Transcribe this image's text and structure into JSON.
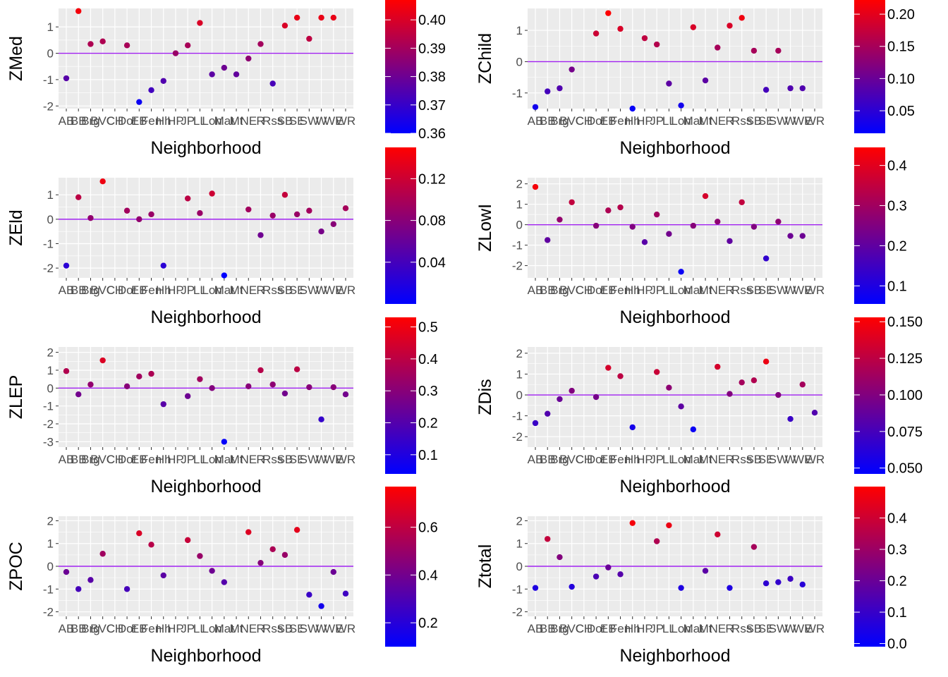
{
  "chart_data": [
    {
      "type": "scatter",
      "xlabel": "Neighborhood",
      "ylabel": "ZMed",
      "ylim": [
        -2.1,
        1.7
      ],
      "y_ticks": [
        -2,
        -1,
        0,
        1
      ],
      "tick_labels": [
        "AB",
        "BB",
        "Brg",
        "BVC",
        "CH",
        "Dot",
        "EB",
        "Fen",
        "Hh",
        "HP",
        "JP",
        "LL",
        "Lon",
        "Mat",
        "Mt",
        "NE",
        "R",
        "Rss",
        "SB",
        "SE",
        "SW",
        "W",
        "WE",
        "WR"
      ],
      "point_indices": [
        0,
        1,
        2,
        3,
        5,
        6,
        7,
        8,
        9,
        10,
        11,
        12,
        13,
        14,
        15,
        16,
        17,
        18,
        19,
        20,
        21,
        22
      ],
      "values": [
        -0.95,
        1.6,
        0.35,
        0.45,
        0.3,
        -1.85,
        -1.4,
        -1.05,
        0.0,
        0.3,
        1.15,
        -0.8,
        -0.55,
        -0.8,
        -0.2,
        0.35,
        -1.15,
        1.05,
        1.35,
        0.55,
        1.35,
        1.35
      ],
      "color_values": [
        0.376,
        0.405,
        0.392,
        0.392,
        0.391,
        0.362,
        0.372,
        0.375,
        0.388,
        0.391,
        0.4,
        0.377,
        0.38,
        0.378,
        0.386,
        0.39,
        0.373,
        0.4,
        0.403,
        0.395,
        0.403,
        0.403
      ],
      "colorbar": {
        "min": 0.36,
        "max": 0.407,
        "ticks": [
          0.36,
          0.37,
          0.38,
          0.39,
          0.4
        ],
        "labels": [
          "0.36",
          "0.37",
          "0.38",
          "0.39",
          "0.40"
        ]
      },
      "hline": 0
    },
    {
      "type": "scatter",
      "xlabel": "Neighborhood",
      "ylabel": "ZChild",
      "ylim": [
        -1.5,
        1.7
      ],
      "y_ticks": [
        -1,
        0,
        1
      ],
      "tick_labels": [
        "AB",
        "BB",
        "Brg",
        "BVC",
        "CH",
        "Dot",
        "EB",
        "Fen",
        "Hh",
        "HP",
        "JP",
        "LL",
        "Lon",
        "Mat",
        "Mt",
        "NE",
        "R",
        "Rss",
        "SB",
        "SE",
        "SW",
        "W",
        "WE",
        "WR"
      ],
      "point_indices": [
        0,
        1,
        2,
        3,
        5,
        6,
        7,
        8,
        9,
        10,
        11,
        12,
        13,
        14,
        15,
        16,
        17,
        18,
        19,
        20,
        21,
        22
      ],
      "values": [
        -1.45,
        -0.95,
        -0.85,
        -0.25,
        0.9,
        1.55,
        1.05,
        -1.5,
        0.75,
        0.55,
        -0.7,
        -1.4,
        1.1,
        -0.6,
        0.45,
        1.15,
        1.4,
        0.35,
        -0.9,
        0.35,
        -0.85,
        -0.85
      ],
      "color_values": [
        0.03,
        0.07,
        0.08,
        0.11,
        0.18,
        0.22,
        0.19,
        0.02,
        0.17,
        0.16,
        0.09,
        0.03,
        0.19,
        0.09,
        0.15,
        0.19,
        0.21,
        0.15,
        0.07,
        0.15,
        0.08,
        0.08
      ],
      "colorbar": {
        "min": 0.015,
        "max": 0.222,
        "ticks": [
          0.05,
          0.1,
          0.15,
          0.2
        ],
        "labels": [
          "0.05",
          "0.10",
          "0.15",
          "0.20"
        ]
      },
      "hline": 0
    },
    {
      "type": "scatter",
      "xlabel": "Neighborhood",
      "ylabel": "ZEld",
      "ylim": [
        -2.4,
        1.7
      ],
      "y_ticks": [
        -2,
        -1,
        0,
        1
      ],
      "tick_labels": [
        "AB",
        "BB",
        "Brg",
        "BVC",
        "CH",
        "Dot",
        "EB",
        "Fen",
        "Hh",
        "HP",
        "JP",
        "LL",
        "Lon",
        "Mat",
        "Mt",
        "NE",
        "R",
        "Rss",
        "SB",
        "SE",
        "SW",
        "W",
        "WE",
        "WR"
      ],
      "point_indices": [
        0,
        1,
        2,
        3,
        5,
        6,
        7,
        8,
        10,
        11,
        12,
        13,
        15,
        16,
        17,
        18,
        19,
        20,
        21,
        22,
        23
      ],
      "values": [
        -1.9,
        0.9,
        0.05,
        1.55,
        0.35,
        0.0,
        0.2,
        -1.9,
        0.85,
        0.25,
        1.05,
        -2.3,
        0.4,
        -0.65,
        0.15,
        1.0,
        0.2,
        0.35,
        -0.5,
        -0.2,
        0.45
      ],
      "color_values": [
        0.025,
        0.11,
        0.085,
        0.14,
        0.095,
        0.085,
        0.09,
        0.025,
        0.11,
        0.09,
        0.12,
        0.0,
        0.095,
        0.065,
        0.09,
        0.115,
        0.09,
        0.095,
        0.07,
        0.08,
        0.097
      ],
      "colorbar": {
        "min": 0.0,
        "max": 0.15,
        "ticks": [
          0.04,
          0.08,
          0.12
        ],
        "labels": [
          "0.04",
          "0.08",
          "0.12"
        ]
      },
      "hline": 0
    },
    {
      "type": "scatter",
      "xlabel": "Neighborhood",
      "ylabel": "ZLowI",
      "ylim": [
        -2.6,
        2.3
      ],
      "y_ticks": [
        -2,
        -1,
        0,
        1,
        2
      ],
      "tick_labels": [
        "AB",
        "BB",
        "Brg",
        "BVC",
        "CH",
        "Dot",
        "EB",
        "Fen",
        "Hh",
        "HP",
        "JP",
        "LL",
        "Lon",
        "Mat",
        "Mt",
        "NE",
        "R",
        "Rss",
        "SB",
        "SE",
        "SW",
        "W",
        "WE",
        "WR"
      ],
      "point_indices": [
        0,
        1,
        2,
        3,
        5,
        6,
        7,
        8,
        9,
        10,
        11,
        12,
        13,
        14,
        15,
        16,
        17,
        18,
        19,
        20,
        21,
        22
      ],
      "values": [
        1.85,
        -0.75,
        0.25,
        1.1,
        -0.05,
        0.7,
        0.85,
        -0.1,
        -0.85,
        0.5,
        -0.45,
        -2.3,
        -0.05,
        1.4,
        0.15,
        -0.8,
        1.1,
        -0.1,
        -1.65,
        0.15,
        -0.55,
        -0.55
      ],
      "color_values": [
        0.43,
        0.2,
        0.28,
        0.35,
        0.26,
        0.32,
        0.33,
        0.25,
        0.19,
        0.3,
        0.23,
        0.07,
        0.26,
        0.38,
        0.27,
        0.2,
        0.35,
        0.25,
        0.13,
        0.27,
        0.22,
        0.22
      ],
      "colorbar": {
        "min": 0.055,
        "max": 0.445,
        "ticks": [
          0.1,
          0.2,
          0.3,
          0.4
        ],
        "labels": [
          "0.1",
          "0.2",
          "0.3",
          "0.4"
        ]
      },
      "hline": 0
    },
    {
      "type": "scatter",
      "xlabel": "Neighborhood",
      "ylabel": "ZLEP",
      "ylim": [
        -3.3,
        2.3
      ],
      "y_ticks": [
        -3,
        -2,
        -1,
        0,
        1,
        2
      ],
      "tick_labels": [
        "AB",
        "BB",
        "Brg",
        "BVC",
        "CH",
        "Dot",
        "EB",
        "Fen",
        "Hh",
        "HP",
        "JP",
        "LL",
        "Lon",
        "Mat",
        "Mt",
        "NE",
        "R",
        "Rss",
        "SB",
        "SE",
        "SW",
        "W",
        "WE",
        "WR"
      ],
      "point_indices": [
        0,
        1,
        2,
        3,
        5,
        6,
        7,
        8,
        10,
        11,
        12,
        13,
        15,
        16,
        17,
        18,
        19,
        20,
        21,
        22,
        23
      ],
      "values": [
        0.95,
        -0.35,
        0.2,
        1.55,
        0.1,
        0.65,
        0.8,
        -0.9,
        -0.45,
        0.5,
        0.0,
        -3.0,
        0.1,
        1.0,
        0.2,
        -0.3,
        1.05,
        0.05,
        -1.75,
        0.05,
        -0.35
      ],
      "color_values": [
        0.38,
        0.26,
        0.32,
        0.46,
        0.3,
        0.35,
        0.37,
        0.21,
        0.25,
        0.35,
        0.29,
        0.05,
        0.3,
        0.39,
        0.31,
        0.26,
        0.4,
        0.3,
        0.14,
        0.3,
        0.26
      ],
      "colorbar": {
        "min": 0.04,
        "max": 0.53,
        "ticks": [
          0.1,
          0.2,
          0.3,
          0.4,
          0.5
        ],
        "labels": [
          "0.1",
          "0.2",
          "0.3",
          "0.4",
          "0.5"
        ]
      },
      "hline": 0
    },
    {
      "type": "scatter",
      "xlabel": "Neighborhood",
      "ylabel": "ZDis",
      "ylim": [
        -2.5,
        2.3
      ],
      "y_ticks": [
        -2,
        -1,
        0,
        1,
        2
      ],
      "tick_labels": [
        "AB",
        "BB",
        "Brg",
        "BVC",
        "CH",
        "Dot",
        "EB",
        "Fen",
        "Hh",
        "HP",
        "JP",
        "LL",
        "Lon",
        "Mat",
        "Mt",
        "NE",
        "R",
        "Rss",
        "SB",
        "SE",
        "SW",
        "W",
        "WE",
        "WR"
      ],
      "point_indices": [
        0,
        1,
        2,
        3,
        5,
        6,
        7,
        8,
        10,
        11,
        12,
        13,
        15,
        16,
        17,
        18,
        19,
        20,
        21,
        22,
        23
      ],
      "values": [
        -1.35,
        -0.9,
        -0.2,
        0.2,
        -0.1,
        1.3,
        0.9,
        -1.55,
        1.1,
        0.35,
        -0.55,
        -1.65,
        1.35,
        0.05,
        0.6,
        0.7,
        1.6,
        0.0,
        -1.15,
        0.5,
        -0.85
      ],
      "color_values": [
        0.07,
        0.08,
        0.09,
        0.1,
        0.095,
        0.135,
        0.125,
        0.055,
        0.13,
        0.105,
        0.085,
        0.05,
        0.135,
        0.1,
        0.115,
        0.12,
        0.145,
        0.1,
        0.07,
        0.115,
        0.08
      ],
      "colorbar": {
        "min": 0.046,
        "max": 0.153,
        "ticks": [
          0.05,
          0.075,
          0.1,
          0.125,
          0.15
        ],
        "labels": [
          "0.050",
          "0.075",
          "0.100",
          "0.125",
          "0.150"
        ]
      },
      "hline": 0
    },
    {
      "type": "scatter",
      "xlabel": "Neighborhood",
      "ylabel": "ZPOC",
      "ylim": [
        -2.2,
        2.2
      ],
      "y_ticks": [
        -2,
        -1,
        0,
        1,
        2
      ],
      "tick_labels": [
        "AB",
        "BB",
        "Brg",
        "BVC",
        "CH",
        "Dot",
        "EB",
        "Fen",
        "Hh",
        "HP",
        "JP",
        "LL",
        "Lon",
        "Mat",
        "Mt",
        "NE",
        "R",
        "Rss",
        "SB",
        "SE",
        "SW",
        "W",
        "WE",
        "WR"
      ],
      "point_indices": [
        0,
        1,
        2,
        3,
        5,
        6,
        7,
        8,
        10,
        11,
        12,
        13,
        15,
        16,
        17,
        18,
        19,
        20,
        21,
        22,
        23
      ],
      "values": [
        -0.25,
        -1.0,
        -0.6,
        0.55,
        -1.0,
        1.45,
        0.95,
        -0.4,
        1.15,
        0.45,
        -0.2,
        -0.7,
        1.5,
        0.15,
        0.75,
        0.5,
        1.6,
        -1.25,
        -1.75,
        -0.25,
        -1.2
      ],
      "color_values": [
        0.38,
        0.28,
        0.33,
        0.52,
        0.28,
        0.67,
        0.58,
        0.34,
        0.62,
        0.5,
        0.39,
        0.32,
        0.68,
        0.45,
        0.55,
        0.5,
        0.7,
        0.25,
        0.15,
        0.38,
        0.26
      ],
      "colorbar": {
        "min": 0.1,
        "max": 0.77,
        "ticks": [
          0.2,
          0.4,
          0.6
        ],
        "labels": [
          "0.2",
          "0.4",
          "0.6"
        ]
      },
      "hline": 0
    },
    {
      "type": "scatter",
      "xlabel": "Neighborhood",
      "ylabel": "Ztotal",
      "ylim": [
        -2.2,
        2.2
      ],
      "y_ticks": [
        -2,
        -1,
        0,
        1,
        2
      ],
      "tick_labels": [
        "AB",
        "BB",
        "Brg",
        "BVC",
        "CH",
        "Dot",
        "EB",
        "Fen",
        "Hh",
        "HP",
        "JP",
        "LL",
        "Lon",
        "Mat",
        "Mt",
        "NE",
        "R",
        "Rss",
        "SB",
        "SE",
        "SW",
        "W",
        "WE",
        "WR"
      ],
      "point_indices": [
        0,
        1,
        2,
        3,
        5,
        6,
        7,
        8,
        10,
        11,
        12,
        14,
        15,
        16,
        18,
        19,
        20,
        21,
        22
      ],
      "values": [
        -0.95,
        1.2,
        0.4,
        -0.9,
        -0.45,
        -0.05,
        -0.35,
        1.9,
        1.1,
        1.8,
        -0.95,
        -0.2,
        1.4,
        -0.95,
        0.85,
        -0.75,
        -0.7,
        -0.55,
        -0.8
      ],
      "color_values": [
        0.05,
        0.38,
        0.25,
        0.06,
        0.14,
        0.2,
        0.16,
        0.48,
        0.34,
        0.46,
        0.05,
        0.17,
        0.4,
        0.05,
        0.32,
        0.08,
        0.09,
        0.11,
        0.07
      ],
      "colorbar": {
        "min": -0.01,
        "max": 0.5,
        "ticks": [
          0.0,
          0.1,
          0.2,
          0.3,
          0.4
        ],
        "labels": [
          "0.0",
          "0.1",
          "0.2",
          "0.3",
          "0.4"
        ]
      },
      "hline": 0
    }
  ],
  "colors": {
    "panel_bg": "#ebebeb",
    "grid": "#ffffff",
    "hline": "#a020f0",
    "low": "#0000ff",
    "high": "#ff0000",
    "text_dark": "#000000",
    "text_tick": "#4d4d4d",
    "tick": "#333333"
  }
}
